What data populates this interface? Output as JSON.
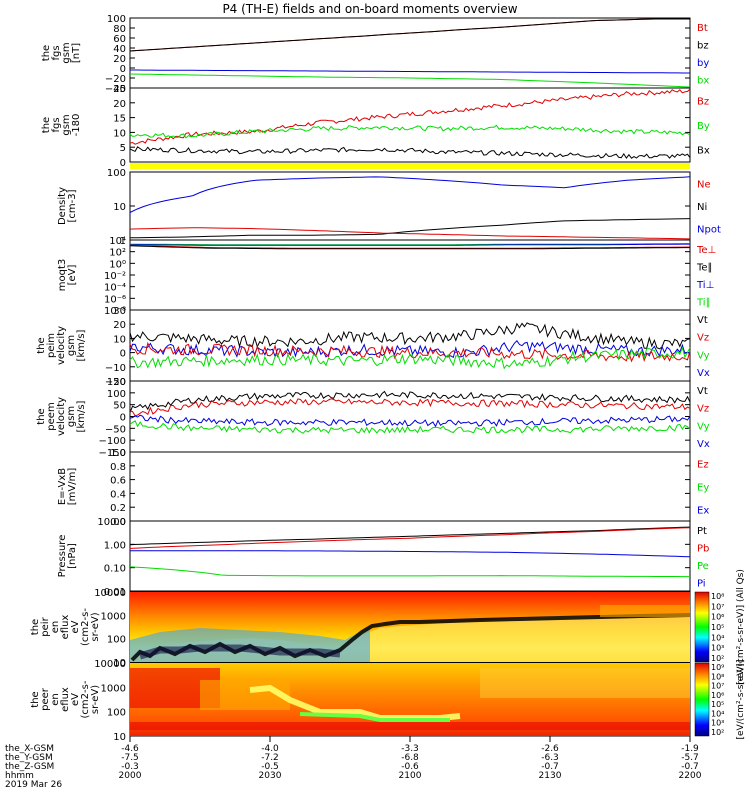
{
  "title": "P4 (TH-E) fields and on-board moments overview",
  "colors": {
    "black": "#000000",
    "red": "#e00000",
    "green": "#00dd00",
    "blue": "#0000dd",
    "yellow": "#ffff00"
  },
  "chart_data": [
    {
      "type": "line",
      "ylabel": [
        "the",
        "fgs",
        "gsm",
        "[nT]"
      ],
      "ylim": [
        -40,
        100
      ],
      "yticks": [
        "100",
        "80",
        "60",
        "40",
        "20",
        "0",
        "−20",
        "−40"
      ],
      "legend": [
        "Bt",
        "bz",
        "by",
        "bx"
      ],
      "series": [
        {
          "name": "Bt",
          "color": "red",
          "values": [
            34,
            46,
            58,
            70,
            82,
            95,
            100
          ]
        },
        {
          "name": "bz",
          "color": "black",
          "values": [
            34,
            46,
            58,
            70,
            82,
            95,
            100
          ]
        },
        {
          "name": "by",
          "color": "blue",
          "values": [
            -4,
            -5,
            -6,
            -7,
            -8,
            -9,
            -10
          ]
        },
        {
          "name": "bx",
          "color": "green",
          "values": [
            -12,
            -15,
            -18,
            -20,
            -23,
            -30,
            -38
          ]
        }
      ]
    },
    {
      "type": "line",
      "ylabel": [
        "the",
        "fgs",
        "gsm",
        "-180"
      ],
      "ylim": [
        -0.5,
        25
      ],
      "yticks": [
        "25",
        "20",
        "15",
        "10",
        "5",
        "0"
      ],
      "legend": [
        "Bz",
        "By",
        "Bx"
      ],
      "series": [
        {
          "name": "Bz",
          "color": "red",
          "values": [
            6,
            9,
            10,
            13,
            15,
            17,
            19,
            21,
            23,
            24
          ]
        },
        {
          "name": "By",
          "color": "green",
          "values": [
            9,
            8.5,
            10,
            11,
            11.5,
            11,
            11.5,
            11,
            10,
            9.5
          ]
        },
        {
          "name": "Bx",
          "color": "black",
          "values": [
            4,
            3.5,
            3,
            3.5,
            4,
            3,
            2.5,
            2,
            1.5,
            1.5
          ]
        }
      ]
    },
    {
      "type": "line",
      "ylabel": [
        "Density",
        "[cm-3]"
      ],
      "ylim": [
        1,
        300
      ],
      "scale": "log",
      "yticks": [
        "100",
        "10",
        "1"
      ],
      "legend": [
        "Ne",
        "Ni",
        "Npot"
      ],
      "series": [
        {
          "name": "Npot",
          "color": "blue",
          "values": [
            10,
            40,
            150,
            180,
            200,
            150,
            100,
            80,
            150,
            200
          ]
        },
        {
          "name": "Ni",
          "color": "black",
          "values": [
            1.2,
            1.3,
            1.5,
            1.5,
            1.6,
            2.5,
            3.5,
            5,
            5.5,
            6
          ]
        },
        {
          "name": "Ne",
          "color": "red",
          "values": [
            2.5,
            2.8,
            2.6,
            2.2,
            1.8,
            1.6,
            1.4,
            1.3,
            1.2,
            1.1
          ]
        }
      ]
    },
    {
      "type": "line",
      "ylabel": [
        "moqt3",
        "[eV]"
      ],
      "ylim": [
        -8,
        4
      ],
      "yticks": [
        "10⁴",
        "10²",
        "10⁰",
        "10⁻²",
        "10⁻⁴",
        "10⁻⁶",
        "10⁻⁸"
      ],
      "legend": [
        "Te⊥",
        "Te∥",
        "Ti⊥",
        "Ti∥"
      ],
      "series": [
        {
          "name": "Ti∥",
          "color": "green",
          "values": [
            3.3,
            3.2,
            3.2,
            3.2,
            3.2,
            3.3,
            3.3,
            3.4
          ]
        },
        {
          "name": "Ti⊥",
          "color": "blue",
          "values": [
            3.2,
            3.1,
            3.1,
            3.1,
            3.1,
            3.2,
            3.2,
            3.3
          ]
        },
        {
          "name": "Te⊥",
          "color": "red",
          "values": [
            3.1,
            2.7,
            2.6,
            2.6,
            2.6,
            2.6,
            2.7,
            2.8
          ]
        },
        {
          "name": "Te∥",
          "color": "black",
          "values": [
            3,
            2.6,
            2.5,
            2.5,
            2.5,
            2.5,
            2.6,
            2.7
          ]
        }
      ]
    },
    {
      "type": "line",
      "ylabel": [
        "the",
        "peim",
        "velocity",
        "gsm",
        "[km/s]"
      ],
      "ylim": [
        -20,
        30
      ],
      "yticks": [
        "30",
        "20",
        "10",
        "0",
        "−10",
        "−20"
      ],
      "legend": [
        "Vt",
        "Vz",
        "Vy",
        "Vx"
      ],
      "series": [
        {
          "name": "Vt",
          "color": "black",
          "values": [
            12,
            10,
            8,
            8,
            11,
            10,
            12,
            18,
            12,
            7,
            6
          ]
        },
        {
          "name": "Vx",
          "color": "blue",
          "values": [
            4,
            2,
            1,
            0,
            2,
            1,
            0,
            5,
            3,
            1,
            2
          ]
        },
        {
          "name": "Vz",
          "color": "red",
          "values": [
            3,
            2,
            2,
            1,
            1,
            0,
            0,
            -1,
            -2,
            -3,
            -2
          ]
        },
        {
          "name": "Vy",
          "color": "green",
          "values": [
            -7,
            -6,
            -5,
            -5,
            -6,
            -4,
            -6,
            -8,
            -3,
            -1,
            0
          ]
        }
      ]
    },
    {
      "type": "line",
      "ylabel": [
        "the",
        "peem",
        "velocity",
        "gsm",
        "[km/s]"
      ],
      "ylim": [
        -150,
        150
      ],
      "yticks": [
        "150",
        "100",
        "50",
        "0",
        "−50",
        "−100",
        "−150"
      ],
      "legend": [
        "Vt",
        "Vz",
        "Vy",
        "Vx"
      ],
      "series": [
        {
          "name": "Vt",
          "color": "black",
          "values": [
            30,
            70,
            85,
            90,
            92,
            90,
            85,
            80,
            75,
            70
          ]
        },
        {
          "name": "Vz",
          "color": "red",
          "values": [
            10,
            50,
            60,
            62,
            60,
            58,
            55,
            50,
            45,
            40
          ]
        },
        {
          "name": "Vx",
          "color": "blue",
          "values": [
            -5,
            -20,
            -25,
            -25,
            -25,
            -30,
            -25,
            -20,
            -15,
            -10
          ]
        },
        {
          "name": "Vy",
          "color": "green",
          "values": [
            -30,
            -50,
            -55,
            -58,
            -58,
            -55,
            -55,
            -55,
            -50,
            -45
          ]
        }
      ]
    },
    {
      "type": "line",
      "ylabel": [
        "E=-VxB",
        "[mV/m]"
      ],
      "ylim": [
        0,
        1
      ],
      "yticks": [
        "1.0",
        "0.8",
        "0.6",
        "0.4",
        "0.2",
        "0.0"
      ],
      "legend": [
        "Ez",
        "Ey",
        "Ex"
      ],
      "series": []
    },
    {
      "type": "line",
      "ylabel": [
        "Pressure",
        "[nPa]"
      ],
      "ylim": [
        0.005,
        15
      ],
      "scale": "log",
      "yticks": [
        "10.00",
        "1.00",
        "0.10",
        "0.01"
      ],
      "legend": [
        "Pt",
        "Pb",
        "Pe",
        "Pi"
      ],
      "series": [
        {
          "name": "Pt",
          "color": "black",
          "values": [
            1.0,
            1.4,
            1.9,
            2.6,
            3.6,
            5.0,
            7.5
          ]
        },
        {
          "name": "Pb",
          "color": "red",
          "values": [
            0.65,
            1.0,
            1.5,
            2.1,
            3.1,
            4.6,
            7.0
          ]
        },
        {
          "name": "Pi",
          "color": "blue",
          "values": [
            0.5,
            0.5,
            0.49,
            0.46,
            0.42,
            0.34,
            0.25
          ]
        },
        {
          "name": "Pe",
          "color": "green",
          "values": [
            0.08,
            0.03,
            0.028,
            0.028,
            0.029,
            0.027,
            0.026
          ]
        }
      ]
    },
    {
      "type": "heatmap",
      "ylabel": [
        "the",
        "peir",
        "en",
        "eflux",
        "eV",
        "(cm2-s-",
        "sr-eV)"
      ],
      "yticks": [
        "10000",
        "1000",
        "100",
        "10"
      ],
      "colorbar_label": "[eV/(cm²-s-sr-eV)] (All Qs)",
      "colorbar_ticks": [
        "10⁸",
        "10⁷",
        "10⁶",
        "10⁵",
        "10⁴",
        "10³",
        "10²"
      ]
    },
    {
      "type": "heatmap",
      "ylabel": [
        "the",
        "peer",
        "en",
        "eflux",
        "eV",
        "(cm2-s-",
        "sr-eV)"
      ],
      "yticks": [
        "10000",
        "1000",
        "100",
        "10"
      ],
      "colorbar_label": "[eV/(cm²-s-sr-eV)]",
      "colorbar_ticks": [
        "10⁹",
        "10⁸",
        "10⁷",
        "10⁶",
        "10⁵",
        "10⁴",
        "10³",
        "10²"
      ]
    }
  ],
  "xaxis": {
    "ticks": [
      {
        "x": "-4.6",
        "y": "-7.5",
        "z": "-0.3",
        "t": "2000"
      },
      {
        "x": "-4.0",
        "y": "-7.2",
        "z": "-0.5",
        "t": "2030"
      },
      {
        "x": "-3.3",
        "y": "-6.8",
        "z": "-0.6",
        "t": "2100"
      },
      {
        "x": "-2.6",
        "y": "-6.3",
        "z": "-0.7",
        "t": "2130"
      },
      {
        "x": "-1.9",
        "y": "-5.7",
        "z": "-0.7",
        "t": "2200"
      }
    ],
    "row_labels": [
      "the_X-GSM",
      "the_Y-GSM",
      "the_Z-GSM",
      "hhmm"
    ],
    "date": "2019 Mar 26"
  }
}
